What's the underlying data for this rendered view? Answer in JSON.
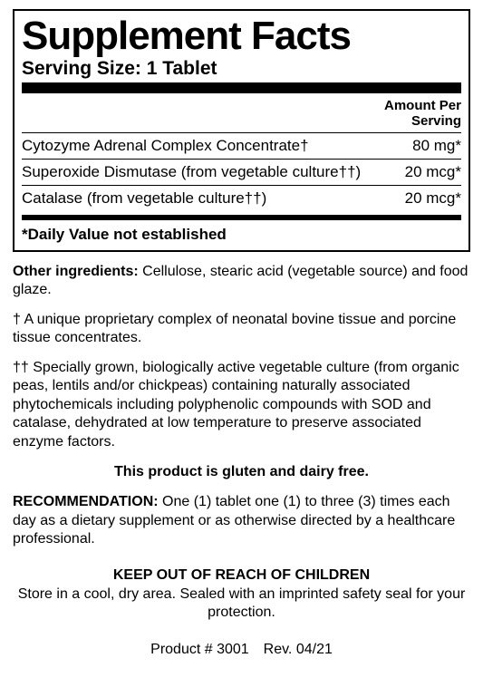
{
  "panel": {
    "title": "Supplement Facts",
    "serving_size_label": "Serving Size: 1 Tablet",
    "amount_header_line1": "Amount Per",
    "amount_header_line2": "Serving",
    "rows": [
      {
        "name": "Cytozyme Adrenal Complex Concentrate†",
        "amount": "80 mg*"
      },
      {
        "name": "Superoxide Dismutase (from vegetable culture††)",
        "amount": "20 mcg*"
      },
      {
        "name": "Catalase (from vegetable culture††)",
        "amount": "20 mcg*"
      }
    ],
    "dv_note": "*Daily Value not established"
  },
  "other_ingredients": {
    "lead": "Other ingredients:",
    "text": " Cellulose, stearic acid (vegetable source) and food glaze."
  },
  "dagger_note": "† A unique proprietary complex of neonatal bovine tissue and porcine tissue concentrates.",
  "ddagger_note": "†† Specially grown, biologically active vegetable culture (from organic peas, lentils and/or chickpeas) containing naturally associated phytochemicals including polyphenolic compounds with SOD and catalase, dehydrated at low temperature to preserve associated enzyme factors.",
  "free_from": "This product is gluten and dairy free.",
  "recommendation": {
    "lead": "RECOMMENDATION:",
    "text": " One (1) tablet one (1) to three (3) times each day as a dietary supplement or as otherwise directed by a healthcare professional."
  },
  "keep": {
    "head": "KEEP OUT OF REACH OF CHILDREN",
    "body": "Store in a cool, dry area. Sealed with an imprinted safety seal for your protection."
  },
  "product_line": "Product # 3001 Rev. 04/21"
}
